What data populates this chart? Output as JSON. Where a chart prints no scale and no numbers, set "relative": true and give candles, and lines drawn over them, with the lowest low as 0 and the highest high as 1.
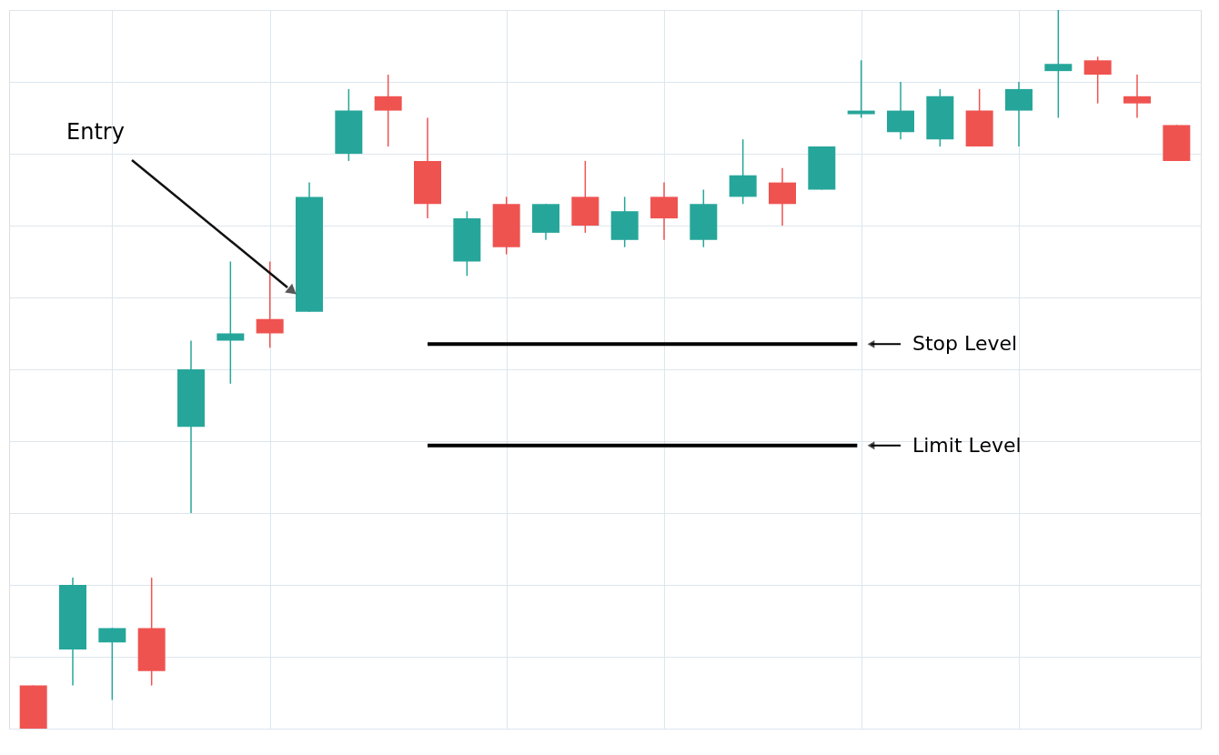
{
  "chart_data": {
    "type": "candlestick",
    "relative": true,
    "grid": true,
    "tick_labels": false,
    "categories": [
      null,
      null,
      null,
      null,
      null,
      null,
      null,
      null,
      null,
      null,
      null,
      null,
      null,
      null,
      null,
      null,
      null,
      null,
      null,
      null,
      null,
      null,
      null,
      null,
      null,
      null,
      null,
      null,
      null,
      null
    ],
    "ohlc": [
      [
        0.06,
        0.06,
        0,
        0
      ],
      [
        0.11,
        0.21,
        0.06,
        0.2
      ],
      [
        0.12,
        0.14,
        0.04,
        0.14
      ],
      [
        0.14,
        0.21,
        0.06,
        0.08
      ],
      [
        0.42,
        0.54,
        0.3,
        0.5
      ],
      [
        0.54,
        0.65,
        0.48,
        0.55
      ],
      [
        0.57,
        0.65,
        0.53,
        0.55
      ],
      [
        0.58,
        0.76,
        0.58,
        0.74
      ],
      [
        0.8,
        0.89,
        0.79,
        0.86
      ],
      [
        0.88,
        0.91,
        0.81,
        0.86
      ],
      [
        0.79,
        0.85,
        0.71,
        0.73
      ],
      [
        0.65,
        0.72,
        0.63,
        0.71
      ],
      [
        0.73,
        0.74,
        0.66,
        0.67
      ],
      [
        0.69,
        0.73,
        0.68,
        0.73
      ],
      [
        0.74,
        0.79,
        0.69,
        0.7
      ],
      [
        0.68,
        0.74,
        0.67,
        0.72
      ],
      [
        0.74,
        0.76,
        0.68,
        0.71
      ],
      [
        0.68,
        0.75,
        0.67,
        0.73
      ],
      [
        0.74,
        0.82,
        0.73,
        0.77
      ],
      [
        0.76,
        0.78,
        0.7,
        0.73
      ],
      [
        0.75,
        0.81,
        0.75,
        0.81
      ],
      [
        0.855,
        0.93,
        0.85,
        0.86
      ],
      [
        0.83,
        0.9,
        0.82,
        0.86
      ],
      [
        0.82,
        0.89,
        0.81,
        0.88
      ],
      [
        0.86,
        0.89,
        0.81,
        0.81
      ],
      [
        0.86,
        0.9,
        0.81,
        0.89
      ],
      [
        0.915,
        1,
        0.85,
        0.925
      ],
      [
        0.93,
        0.935,
        0.87,
        0.91
      ],
      [
        0.88,
        0.91,
        0.85,
        0.87
      ],
      [
        0.84,
        0.84,
        0.79,
        0.79
      ]
    ],
    "colors": [
      "#ef5350",
      "#26a69a",
      "#26a69a",
      "#ef5350",
      "#26a69a",
      "#26a69a",
      "#ef5350",
      "#26a69a",
      "#26a69a",
      "#ef5350",
      "#ef5350",
      "#26a69a",
      "#ef5350",
      "#26a69a",
      "#ef5350",
      "#26a69a",
      "#ef5350",
      "#26a69a",
      "#26a69a",
      "#ef5350",
      "#26a69a",
      "#26a69a",
      "#26a69a",
      "#26a69a",
      "#ef5350",
      "#26a69a",
      "#26a69a",
      "#ef5350",
      "#ef5350",
      "#ef5350"
    ],
    "ref_lines": [
      {
        "axis": "y",
        "value": 0.535,
        "label": "Stop Level",
        "color": "#000000"
      },
      {
        "axis": "y",
        "value": 0.394,
        "label": "Limit Level",
        "color": "#000000"
      }
    ],
    "annotations": [
      "Entry"
    ]
  }
}
